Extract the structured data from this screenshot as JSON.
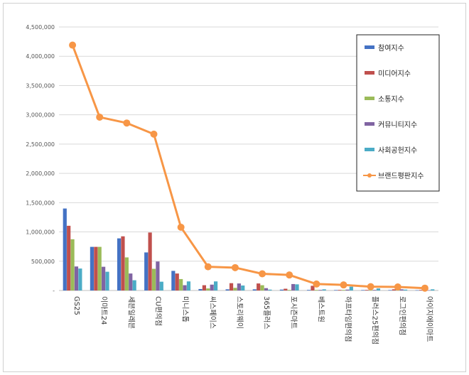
{
  "chart_data": {
    "type": "bar",
    "categories": [
      "GS25",
      "이마트24",
      "세븐일레븐",
      "CU편의점",
      "미니스톱",
      "씨스페이스",
      "스토리웨이",
      "365플러스",
      "포시즌마트",
      "베스트원",
      "하프타임편의점",
      "플러스25편의점",
      "로그인편의점",
      "아이지에이마트"
    ],
    "series": [
      {
        "name": "참여지수",
        "type": "bar",
        "color": "#4472c4",
        "values": [
          1400000,
          745000,
          890000,
          650000,
          335000,
          25000,
          20000,
          20000,
          15000,
          10000,
          8000,
          8000,
          8000,
          5000
        ]
      },
      {
        "name": "미디어지수",
        "type": "bar",
        "color": "#c0504d",
        "values": [
          1105000,
          745000,
          925000,
          990000,
          290000,
          90000,
          125000,
          120000,
          30000,
          80000,
          10000,
          10000,
          20000,
          10000
        ]
      },
      {
        "name": "소통지수",
        "type": "bar",
        "color": "#9bbb59",
        "values": [
          875000,
          745000,
          565000,
          370000,
          195000,
          35000,
          45000,
          90000,
          10000,
          10000,
          10000,
          10000,
          10000,
          5000
        ]
      },
      {
        "name": "커뮤니티지수",
        "type": "bar",
        "color": "#8064a2",
        "values": [
          410000,
          405000,
          290000,
          495000,
          90000,
          100000,
          120000,
          40000,
          110000,
          10000,
          15000,
          10000,
          20000,
          5000
        ]
      },
      {
        "name": "사회공헌지수",
        "type": "bar",
        "color": "#4bacc6",
        "values": [
          375000,
          320000,
          175000,
          150000,
          155000,
          155000,
          85000,
          15000,
          105000,
          20000,
          65000,
          35000,
          15000,
          20000
        ]
      },
      {
        "name": "브랜드평판지수",
        "type": "line",
        "color": "#f79646",
        "values": [
          4190000,
          2960000,
          2860000,
          2670000,
          1080000,
          405000,
          390000,
          285000,
          265000,
          110000,
          95000,
          65000,
          60000,
          40000
        ]
      }
    ],
    "ylim": [
      0,
      4500000
    ],
    "yticks": [
      "-",
      "500,000",
      "1,000,000",
      "1,500,000",
      "2,000,000",
      "2,500,000",
      "3,000,000",
      "3,500,000",
      "4,000,000",
      "4,500,000"
    ],
    "grid": true,
    "legend": "right"
  }
}
